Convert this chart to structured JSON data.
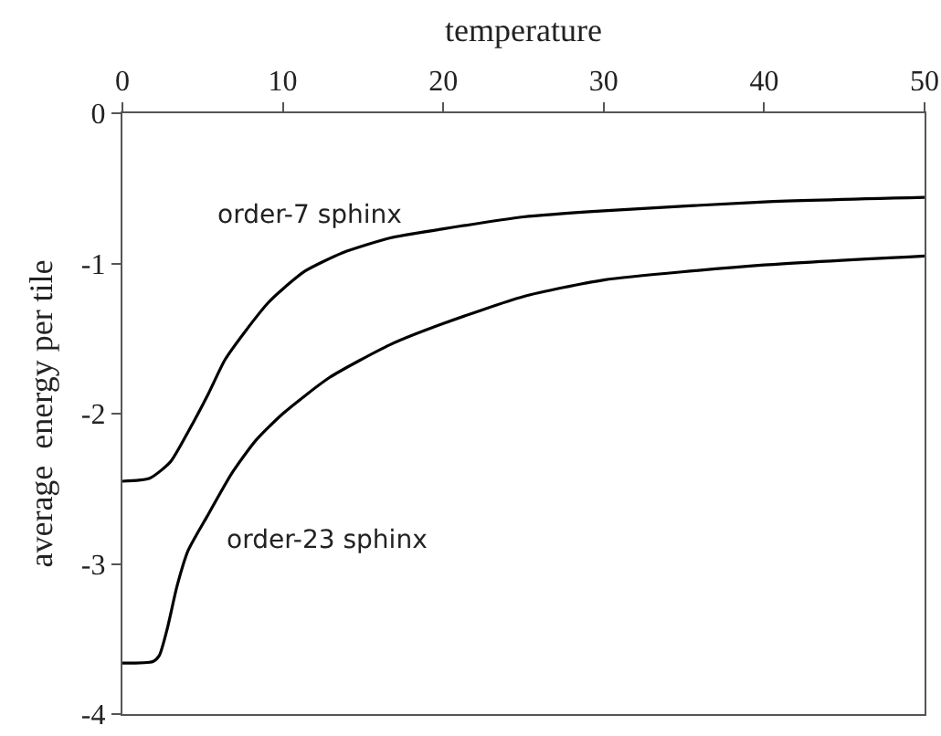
{
  "chart_data": {
    "type": "line",
    "xlabel": "temperature",
    "ylabel": "average  energy per tile",
    "xlim": [
      0,
      50
    ],
    "xticks": [
      0,
      10,
      20,
      30,
      40,
      50
    ],
    "ylim": [
      -4,
      0
    ],
    "yticks": [
      0,
      -1,
      -2,
      -3,
      -4
    ],
    "grid": false,
    "legend": false,
    "marker": "none",
    "line_style": "solid",
    "series": [
      {
        "name": "order-7 sphinx",
        "color": "#000000",
        "x": [
          0,
          1.7,
          3,
          4.1,
          5.3,
          6.4,
          7.6,
          9.1,
          10,
          11.4,
          13.7,
          16.7,
          20,
          25,
          30,
          40,
          50
        ],
        "values": [
          -2.45,
          -2.43,
          -2.32,
          -2.12,
          -1.88,
          -1.64,
          -1.46,
          -1.26,
          -1.17,
          -1.05,
          -0.93,
          -0.83,
          -0.77,
          -0.69,
          -0.65,
          -0.59,
          -0.56
        ]
      },
      {
        "name": "order-23 sphinx",
        "color": "#000000",
        "x": [
          0,
          1.9,
          2.3,
          2.8,
          3.4,
          4.1,
          5.3,
          6.8,
          8.3,
          10,
          12.9,
          16.7,
          20,
          25,
          30,
          40,
          50
        ],
        "values": [
          -3.66,
          -3.65,
          -3.61,
          -3.43,
          -3.15,
          -2.91,
          -2.68,
          -2.4,
          -2.18,
          -2,
          -1.76,
          -1.54,
          -1.4,
          -1.22,
          -1.11,
          -1.01,
          -0.95
        ]
      }
    ]
  }
}
